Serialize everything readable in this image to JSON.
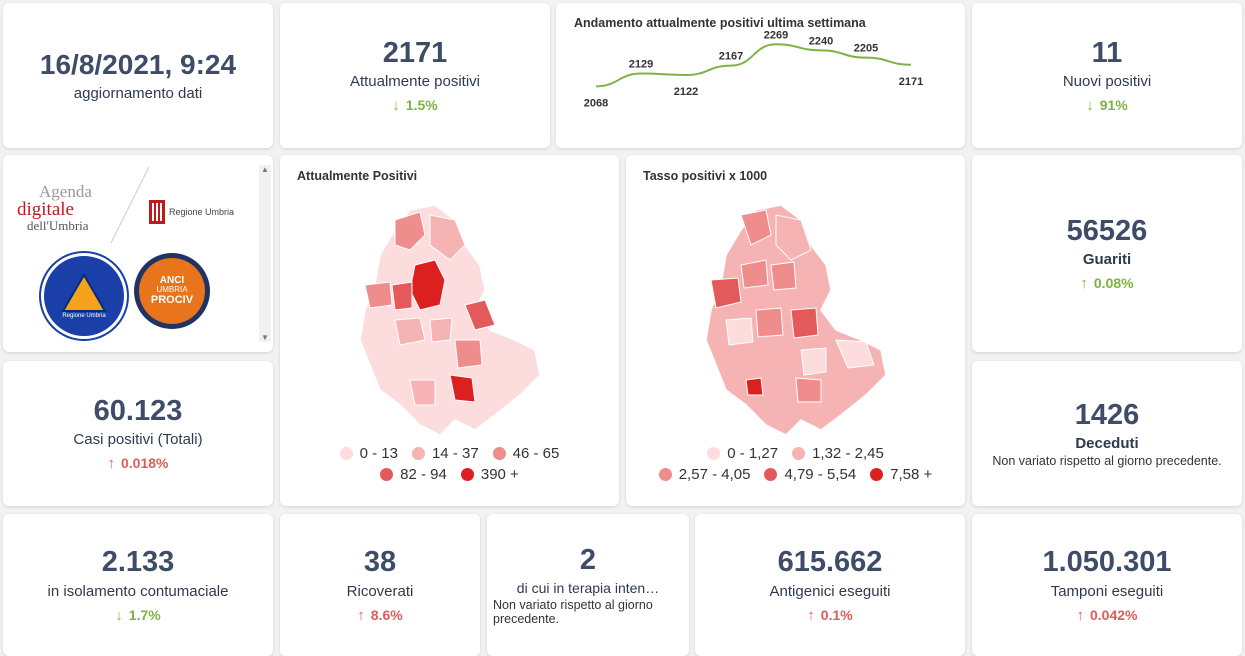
{
  "update": {
    "datetime": "16/8/2021, 9:24",
    "label": "aggiornamento dati"
  },
  "attualmente_positivi": {
    "value": "2171",
    "label": "Attualmente positivi",
    "trend": "1.5%",
    "direction": "down"
  },
  "chart_data": {
    "type": "line",
    "title": "Andamento attualmente positivi ultima settimana",
    "x": [
      "1",
      "2",
      "3",
      "4",
      "5",
      "6",
      "7",
      "8"
    ],
    "series": [
      {
        "values": [
          2068,
          2129,
          2122,
          2167,
          2269,
          2240,
          2205,
          2171
        ]
      }
    ],
    "labels": [
      "2068",
      "2129",
      "2122",
      "2167",
      "2269",
      "2240",
      "2205",
      "2171"
    ],
    "color": "#7cb342"
  },
  "nuovi_positivi": {
    "value": "11",
    "label": "Nuovi positivi",
    "trend": "91%",
    "direction": "down"
  },
  "logos": {
    "agenda_line1": "Agenda",
    "agenda_line2": "digitale",
    "agenda_line3": "dell'Umbria",
    "regione": "Regione Umbria",
    "protezione": "Protezione Civile",
    "protezione_sub": "Regione Umbria",
    "anci_line1": "ANCI",
    "anci_line2": "UMBRIA",
    "anci_line3": "PROCIV"
  },
  "map1": {
    "title": "Attualmente Positivi",
    "legend": [
      {
        "label": "0 - 13",
        "color": "#fcdcdc"
      },
      {
        "label": "14 - 37",
        "color": "#f6b3b3"
      },
      {
        "label": "46 - 65",
        "color": "#ef8c8c"
      },
      {
        "label": "82 - 94",
        "color": "#e45a5a"
      },
      {
        "label": "390 +",
        "color": "#dc1f1f"
      }
    ]
  },
  "map2": {
    "title": "Tasso positivi x 1000",
    "legend": [
      {
        "label": "0 - 1,27",
        "color": "#fcdcdc"
      },
      {
        "label": "1,32 - 2,45",
        "color": "#f6b3b3"
      },
      {
        "label": "2,57 - 4,05",
        "color": "#ef8c8c"
      },
      {
        "label": "4,79 - 5,54",
        "color": "#e45a5a"
      },
      {
        "label": "7,58 +",
        "color": "#dc1f1f"
      }
    ]
  },
  "guariti": {
    "value": "56526",
    "label": "Guariti",
    "trend": "0.08%",
    "direction": "up"
  },
  "casi_totali": {
    "value": "60.123",
    "label": "Casi positivi (Totali)",
    "trend": "0.018%",
    "direction": "up"
  },
  "deceduti": {
    "value": "1426",
    "label": "Deceduti",
    "note": "Non variato rispetto al giorno precedente."
  },
  "isolamento": {
    "value": "2.133",
    "label": "in isolamento contumaciale",
    "trend": "1.7%",
    "direction": "down"
  },
  "ricoverati": {
    "value": "38",
    "label": "Ricoverati",
    "trend": "8.6%",
    "direction": "up"
  },
  "terapia": {
    "value": "2",
    "label": "di cui in terapia inten…",
    "note": "Non variato rispetto al giorno precedente."
  },
  "antigenici": {
    "value": "615.662",
    "label": "Antigenici eseguiti",
    "trend": "0.1%",
    "direction": "up"
  },
  "tamponi": {
    "value": "1.050.301",
    "label": "Tamponi eseguiti",
    "trend": "0.042%",
    "direction": "up"
  },
  "arrows": {
    "down": "↓",
    "up": "↑"
  }
}
